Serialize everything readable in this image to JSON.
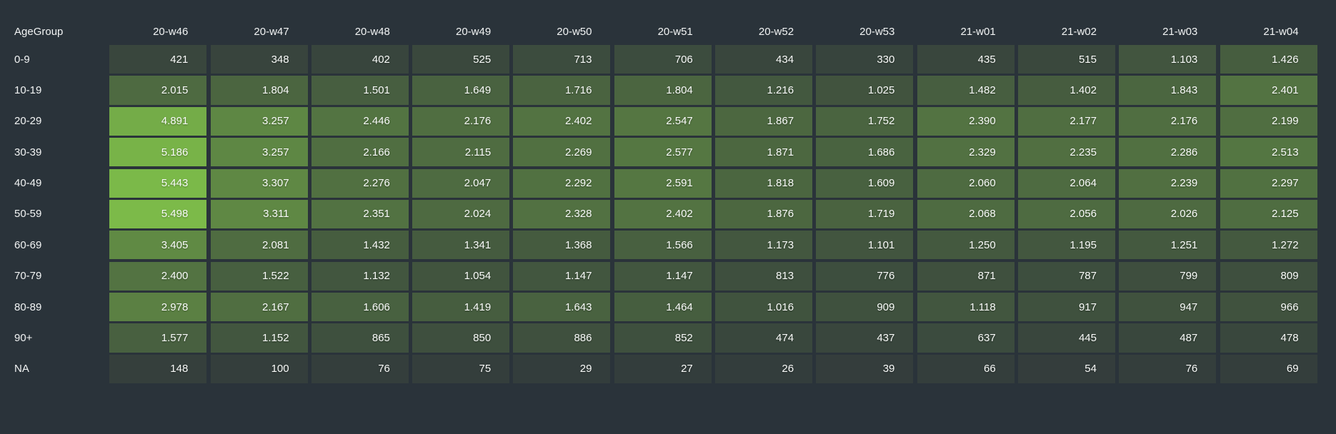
{
  "page": {
    "background_color": "#2a333a"
  },
  "chart_data": {
    "type": "heatmap",
    "title": "",
    "corner_label": "AgeGroup",
    "x_labels": [
      "20-w46",
      "20-w47",
      "20-w48",
      "20-w49",
      "20-w50",
      "20-w51",
      "20-w52",
      "20-w53",
      "21-w01",
      "21-w02",
      "21-w03",
      "21-w04"
    ],
    "y_labels": [
      "0-9",
      "10-19",
      "20-29",
      "30-39",
      "40-49",
      "50-59",
      "60-69",
      "70-79",
      "80-89",
      "90+",
      "NA"
    ],
    "values": [
      [
        421,
        348,
        402,
        525,
        713,
        706,
        434,
        330,
        435,
        515,
        1103,
        1426
      ],
      [
        2015,
        1804,
        1501,
        1649,
        1716,
        1804,
        1216,
        1025,
        1482,
        1402,
        1843,
        2401
      ],
      [
        4891,
        3257,
        2446,
        2176,
        2402,
        2547,
        1867,
        1752,
        2390,
        2177,
        2176,
        2199
      ],
      [
        5186,
        3257,
        2166,
        2115,
        2269,
        2577,
        1871,
        1686,
        2329,
        2235,
        2286,
        2513
      ],
      [
        5443,
        3307,
        2276,
        2047,
        2292,
        2591,
        1818,
        1609,
        2060,
        2064,
        2239,
        2297
      ],
      [
        5498,
        3311,
        2351,
        2024,
        2328,
        2402,
        1876,
        1719,
        2068,
        2056,
        2026,
        2125
      ],
      [
        3405,
        2081,
        1432,
        1341,
        1368,
        1566,
        1173,
        1101,
        1250,
        1195,
        1251,
        1272
      ],
      [
        2400,
        1522,
        1132,
        1054,
        1147,
        1147,
        813,
        776,
        871,
        787,
        799,
        809
      ],
      [
        2978,
        2167,
        1606,
        1419,
        1643,
        1464,
        1016,
        909,
        1118,
        917,
        947,
        966
      ],
      [
        1577,
        1152,
        865,
        850,
        886,
        852,
        474,
        437,
        637,
        445,
        487,
        478
      ],
      [
        148,
        100,
        76,
        75,
        29,
        27,
        26,
        39,
        66,
        54,
        76,
        69
      ]
    ],
    "value_display_format": "thousands separator '.' (e.g. 2015 shown as 2.015)",
    "colorscale": {
      "min_color": "#333c3c",
      "max_color": "#7cba49",
      "domain": [
        0,
        5498
      ]
    },
    "text_color": "#fafcfa",
    "legend": "none",
    "grid": "off",
    "axis_labels": {
      "x": "",
      "y": ""
    }
  }
}
